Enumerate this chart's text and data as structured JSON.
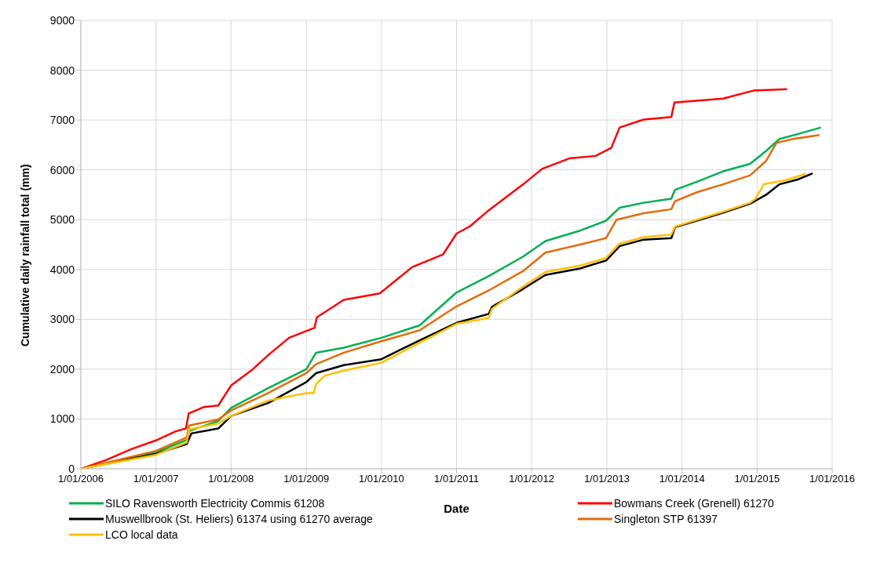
{
  "chart_data": {
    "type": "line",
    "xlabel": "Date",
    "ylabel": "Cumulative daily rainfall total (mm)",
    "xlim": [
      "2006-01-01",
      "2016-01-01"
    ],
    "xticks": [
      {
        "value": "2006-01-01",
        "label": "1/01/2006"
      },
      {
        "value": "2007-01-01",
        "label": "1/01/2007"
      },
      {
        "value": "2008-01-01",
        "label": "1/01/2008"
      },
      {
        "value": "2009-01-01",
        "label": "1/01/2009"
      },
      {
        "value": "2010-01-01",
        "label": "1/01/2010"
      },
      {
        "value": "2011-01-01",
        "label": "1/01/2011"
      },
      {
        "value": "2012-01-01",
        "label": "1/01/2012"
      },
      {
        "value": "2013-01-01",
        "label": "1/01/2013"
      },
      {
        "value": "2014-01-01",
        "label": "1/01/2014"
      },
      {
        "value": "2015-01-01",
        "label": "1/01/2015"
      },
      {
        "value": "2016-01-01",
        "label": "1/01/2016"
      }
    ],
    "ylim": [
      0,
      9000
    ],
    "yticks": [
      0,
      1000,
      2000,
      3000,
      4000,
      5000,
      6000,
      7000,
      8000,
      9000
    ],
    "grid": true,
    "legend": "bottom",
    "marker": "none",
    "line_style": "solid",
    "series": [
      {
        "name": "SILO Ravensworth Electricity Commis 61208",
        "color": "#00b050",
        "x": [
          "2006-01-01",
          "2007-01-01",
          "2007-05-31",
          "2007-06-11",
          "2007-10-31",
          "2008-01-01",
          "2008-06-29",
          "2009-01-01",
          "2009-02-17",
          "2009-07-02",
          "2010-01-01",
          "2010-07-06",
          "2011-01-01",
          "2011-06-07",
          "2011-11-21",
          "2012-03-08",
          "2012-08-23",
          "2012-12-28",
          "2013-03-04",
          "2013-06-29",
          "2013-11-10",
          "2013-11-28",
          "2014-03-14",
          "2014-07-20",
          "2014-11-28",
          "2015-02-14",
          "2015-04-20",
          "2015-07-20",
          "2015-11-07"
        ],
        "values": [
          0,
          330,
          580,
          760,
          960,
          1220,
          1620,
          2000,
          2330,
          2430,
          2630,
          2880,
          3540,
          3870,
          4260,
          4570,
          4780,
          4980,
          5240,
          5340,
          5420,
          5600,
          5760,
          5970,
          6120,
          6380,
          6620,
          6720,
          6850
        ]
      },
      {
        "name": "Bowmans Creek (Grenell) 61270",
        "color": "#ff0000",
        "x": [
          "2006-01-01",
          "2006-05-05",
          "2006-09-06",
          "2007-01-01",
          "2007-04-05",
          "2007-05-27",
          "2007-06-09",
          "2007-08-22",
          "2007-10-31",
          "2008-01-01",
          "2008-04-16",
          "2008-06-29",
          "2008-10-09",
          "2009-02-10",
          "2009-02-21",
          "2009-07-02",
          "2009-12-24",
          "2010-05-31",
          "2010-10-27",
          "2011-01-01",
          "2011-03-08",
          "2011-06-07",
          "2011-11-21",
          "2012-02-21",
          "2012-07-02",
          "2012-11-07",
          "2013-01-22",
          "2013-03-04",
          "2013-06-29",
          "2013-11-10",
          "2013-11-25",
          "2014-07-20",
          "2014-12-13",
          "2015-05-27"
        ],
        "values": [
          0,
          180,
          400,
          570,
          750,
          810,
          1110,
          1240,
          1270,
          1670,
          2000,
          2280,
          2630,
          2830,
          3040,
          3390,
          3520,
          4050,
          4300,
          4720,
          4870,
          5190,
          5710,
          6020,
          6230,
          6280,
          6440,
          6850,
          7010,
          7060,
          7350,
          7430,
          7590,
          7620
        ]
      },
      {
        "name": "Muswellbrook (St. Heliers) 61374 using 61270 average",
        "color": "#000000",
        "x": [
          "2006-01-01",
          "2007-01-01",
          "2007-05-31",
          "2007-06-22",
          "2007-10-31",
          "2008-01-01",
          "2008-06-29",
          "2009-01-01",
          "2009-02-17",
          "2009-07-02",
          "2010-01-01",
          "2010-07-06",
          "2011-01-01",
          "2011-06-07",
          "2011-06-22",
          "2011-11-21",
          "2012-03-08",
          "2012-08-23",
          "2012-12-28",
          "2013-03-04",
          "2013-06-29",
          "2013-11-10",
          "2013-11-28",
          "2014-03-14",
          "2014-07-20",
          "2014-11-28",
          "2015-02-14",
          "2015-04-20",
          "2015-07-20",
          "2015-09-28"
        ],
        "values": [
          0,
          300,
          500,
          710,
          810,
          1060,
          1320,
          1740,
          1920,
          2080,
          2200,
          2580,
          2930,
          3110,
          3250,
          3610,
          3890,
          4020,
          4180,
          4470,
          4600,
          4630,
          4850,
          4980,
          5140,
          5320,
          5500,
          5710,
          5810,
          5930
        ]
      },
      {
        "name": "Singleton STP 61397",
        "color": "#e36c0a",
        "x": [
          "2006-01-01",
          "2007-01-01",
          "2007-05-31",
          "2007-06-11",
          "2007-10-31",
          "2008-01-01",
          "2008-06-29",
          "2009-01-01",
          "2009-02-17",
          "2009-07-02",
          "2010-01-01",
          "2010-07-06",
          "2011-01-01",
          "2011-06-07",
          "2011-11-21",
          "2012-03-08",
          "2012-08-23",
          "2012-12-28",
          "2013-02-17",
          "2013-06-29",
          "2013-11-10",
          "2013-11-28",
          "2014-03-14",
          "2014-07-20",
          "2014-11-28",
          "2015-02-14",
          "2015-04-05",
          "2015-06-25",
          "2015-10-31"
        ],
        "values": [
          0,
          360,
          630,
          870,
          990,
          1170,
          1520,
          1920,
          2100,
          2330,
          2560,
          2780,
          3260,
          3580,
          3970,
          4340,
          4500,
          4630,
          5000,
          5130,
          5210,
          5370,
          5550,
          5710,
          5890,
          6180,
          6540,
          6620,
          6700
        ]
      },
      {
        "name": "LCO local data",
        "color": "#ffc000",
        "x": [
          "2006-01-01",
          "2007-01-01",
          "2007-05-31",
          "2007-06-11",
          "2007-10-31",
          "2008-01-01",
          "2008-06-29",
          "2009-01-01",
          "2009-02-06",
          "2009-02-17",
          "2009-04-01",
          "2009-07-02",
          "2010-01-01",
          "2010-07-06",
          "2011-01-01",
          "2011-06-07",
          "2011-06-22",
          "2011-11-21",
          "2012-03-08",
          "2012-08-23",
          "2012-12-28",
          "2013-03-04",
          "2013-06-29",
          "2013-11-10",
          "2013-11-28",
          "2014-03-14",
          "2014-07-20",
          "2014-11-28",
          "2014-12-24",
          "2015-02-03",
          "2015-05-16",
          "2015-08-26"
        ],
        "values": [
          0,
          280,
          530,
          790,
          910,
          1060,
          1370,
          1520,
          1520,
          1700,
          1870,
          1970,
          2130,
          2530,
          2910,
          3030,
          3210,
          3660,
          3950,
          4080,
          4230,
          4520,
          4650,
          4700,
          4860,
          5000,
          5160,
          5340,
          5420,
          5710,
          5790,
          5920
        ]
      }
    ]
  }
}
